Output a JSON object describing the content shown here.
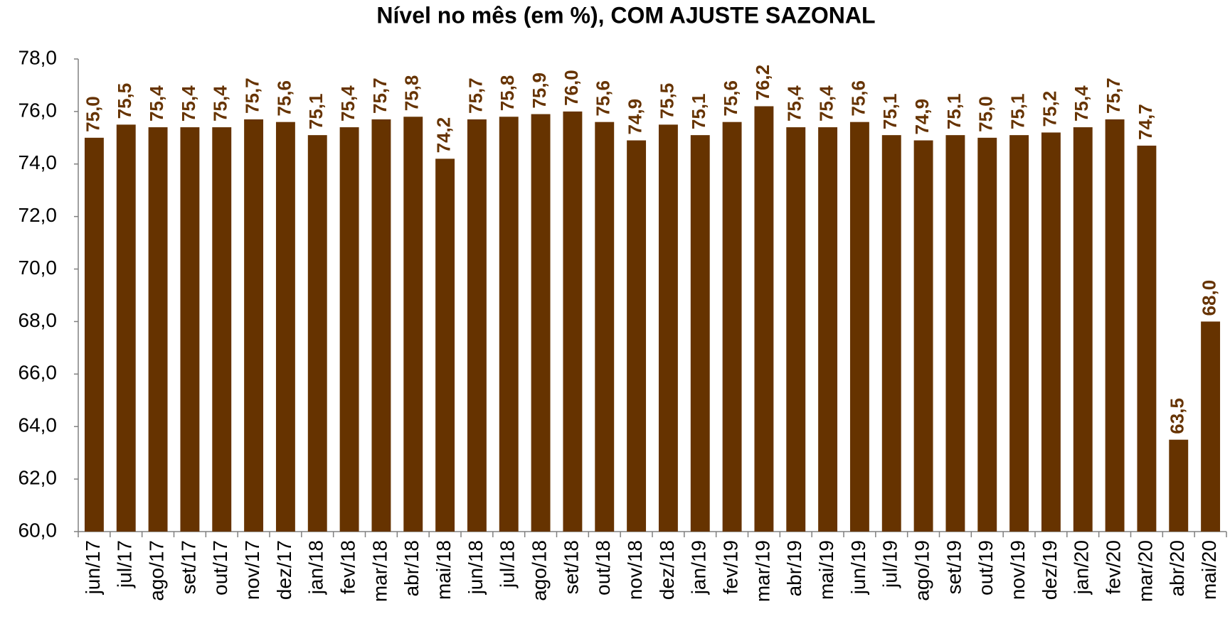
{
  "chart_data": {
    "type": "bar",
    "title": "Nível no mês (em %), COM AJUSTE SAZONAL",
    "categories": [
      "jun/17",
      "jul/17",
      "ago/17",
      "set/17",
      "out/17",
      "nov/17",
      "dez/17",
      "jan/18",
      "fev/18",
      "mar/18",
      "abr/18",
      "mai/18",
      "jun/18",
      "jul/18",
      "ago/18",
      "set/18",
      "out/18",
      "nov/18",
      "dez/18",
      "jan/19",
      "fev/19",
      "mar/19",
      "abr/19",
      "mai/19",
      "jun/19",
      "jul/19",
      "ago/19",
      "set/19",
      "out/19",
      "nov/19",
      "dez/19",
      "jan/20",
      "fev/20",
      "mar/20",
      "abr/20",
      "mai/20"
    ],
    "values": [
      75.0,
      75.5,
      75.4,
      75.4,
      75.4,
      75.7,
      75.6,
      75.1,
      75.4,
      75.7,
      75.8,
      74.2,
      75.7,
      75.8,
      75.9,
      76.0,
      75.6,
      74.9,
      75.5,
      75.1,
      75.6,
      76.2,
      75.4,
      75.4,
      75.6,
      75.1,
      74.9,
      75.1,
      75.0,
      75.1,
      75.2,
      75.4,
      75.7,
      74.7,
      63.5,
      68.0
    ],
    "value_labels": [
      "75,0",
      "75,5",
      "75,4",
      "75,4",
      "75,4",
      "75,7",
      "75,6",
      "75,1",
      "75,4",
      "75,7",
      "75,8",
      "74,2",
      "75,7",
      "75,8",
      "75,9",
      "76,0",
      "75,6",
      "74,9",
      "75,5",
      "75,1",
      "75,6",
      "76,2",
      "75,4",
      "75,4",
      "75,6",
      "75,1",
      "74,9",
      "75,1",
      "75,0",
      "75,1",
      "75,2",
      "75,4",
      "75,7",
      "74,7",
      "63,5",
      "68,0"
    ],
    "color": "#663300",
    "ylim": [
      60,
      78
    ],
    "yticks": [
      {
        "value": 60,
        "label": "60,0"
      },
      {
        "value": 62,
        "label": "62,0"
      },
      {
        "value": 64,
        "label": "64,0"
      },
      {
        "value": 66,
        "label": "66,0"
      },
      {
        "value": 68,
        "label": "68,0"
      },
      {
        "value": 70,
        "label": "70,0"
      },
      {
        "value": 72,
        "label": "72,0"
      },
      {
        "value": 74,
        "label": "74,0"
      },
      {
        "value": 76,
        "label": "76,0"
      },
      {
        "value": 78,
        "label": "78,0"
      }
    ],
    "grid": false
  }
}
